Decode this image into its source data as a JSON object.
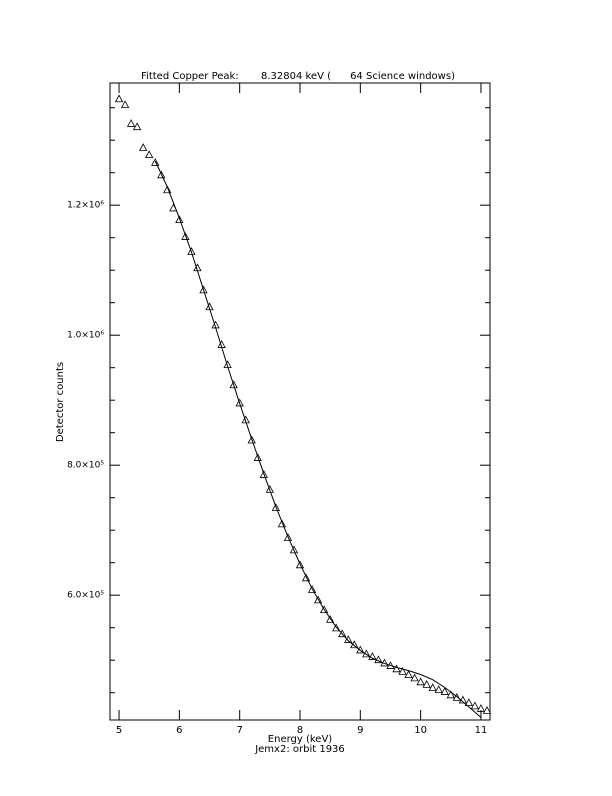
{
  "chart_data": {
    "type": "scatter-fit",
    "title": "Fitted Copper Peak:       8.32804 keV (      64 Science windows)",
    "x_label": "Energy (keV)",
    "y_label": "Detector counts",
    "subtitle": "Jemx2: orbit 1936",
    "xlim": [
      4.85,
      11.15
    ],
    "ylim": [
      408000,
      1388000
    ],
    "xticks": [
      5,
      6,
      7,
      8,
      9,
      10,
      11
    ],
    "yticks": [
      {
        "value": 600000,
        "label": "6.0×10⁵"
      },
      {
        "value": 800000,
        "label": "8.0×10⁵"
      },
      {
        "value": 1000000,
        "label": "1.0×10⁶"
      },
      {
        "value": 1200000,
        "label": "1.2×10⁶"
      }
    ],
    "yminor_ticks": [
      450000,
      500000,
      550000,
      650000,
      700000,
      750000,
      850000,
      900000,
      950000,
      1050000,
      1100000,
      1150000,
      1250000,
      1300000,
      1350000
    ],
    "color": "#000000",
    "series": [
      {
        "x": [
          5.0,
          5.1,
          5.2,
          5.3,
          5.4,
          5.5,
          5.6,
          5.7,
          5.8,
          5.9,
          6.0,
          6.1,
          6.2,
          6.3,
          6.4,
          6.5,
          6.6,
          6.7,
          6.8,
          6.9,
          7.0,
          7.1,
          7.2,
          7.3,
          7.4,
          7.5,
          7.6,
          7.7,
          7.8,
          7.9,
          8.0,
          8.1,
          8.2,
          8.3,
          8.4,
          8.5,
          8.6,
          8.7,
          8.8,
          8.9,
          9.0,
          9.1,
          9.2,
          9.3,
          9.4,
          9.5,
          9.6,
          9.7,
          9.8,
          9.9,
          10.0,
          10.1,
          10.2,
          10.3,
          10.4,
          10.5,
          10.6,
          10.7,
          10.8,
          10.9,
          11.0,
          11.1
        ],
        "values": [
          1363000,
          1354000,
          1325000,
          1320000,
          1288000,
          1277000,
          1265000,
          1246000,
          1223000,
          1195000,
          1177000,
          1151000,
          1128000,
          1103000,
          1069000,
          1043000,
          1015000,
          985000,
          954000,
          923000,
          895000,
          869000,
          838000,
          811000,
          785000,
          762000,
          734000,
          709000,
          688000,
          669000,
          646000,
          626000,
          608000,
          592000,
          577000,
          562000,
          549000,
          540000,
          531000,
          523000,
          515000,
          509000,
          505000,
          500000,
          495000,
          491000,
          486000,
          482000,
          477000,
          472000,
          466000,
          462000,
          457000,
          454000,
          451000,
          446000,
          442000,
          438000,
          434000,
          429000,
          425000,
          422000
        ]
      },
      {
        "x": [
          5.6,
          5.8,
          6.0,
          6.2,
          6.4,
          6.6,
          6.8,
          7.0,
          7.2,
          7.4,
          7.6,
          7.8,
          8.0,
          8.2,
          8.4,
          8.6,
          8.8,
          9.0,
          9.2,
          9.4,
          9.6,
          9.8,
          10.0,
          10.2,
          10.4,
          10.6,
          10.8,
          11.0
        ],
        "values": [
          1268000,
          1228000,
          1180000,
          1128000,
          1070000,
          1012000,
          952000,
          895000,
          840000,
          787000,
          736000,
          690000,
          648000,
          610000,
          578000,
          551000,
          530000,
          515000,
          503000,
          495000,
          489000,
          484000,
          478000,
          470000,
          458000,
          444000,
          428000,
          412000
        ]
      }
    ]
  }
}
